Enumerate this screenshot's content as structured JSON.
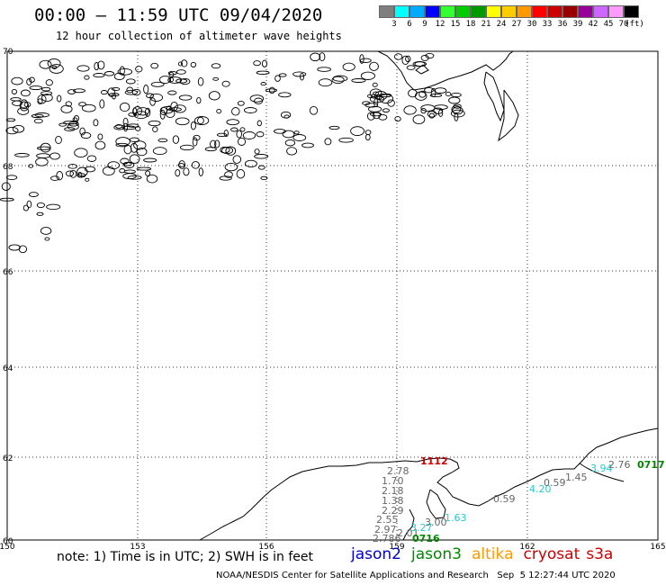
{
  "header": {
    "title": "00:00 – 11:59 UTC 09/04/2020",
    "subtitle": "12 hour collection of altimeter wave heights"
  },
  "color_scale": {
    "colors": [
      "#7f7f7f",
      "#00ffff",
      "#00aaff",
      "#0000ff",
      "#33ff33",
      "#00cc00",
      "#009900",
      "#ffff00",
      "#ffcc00",
      "#ff9900",
      "#ff0000",
      "#cc0000",
      "#990000",
      "#990099",
      "#cc66ff",
      "#ff99ff",
      "#000000"
    ],
    "labels": [
      "3",
      "6",
      "9",
      "12",
      "15",
      "18",
      "21",
      "24",
      "27",
      "30",
      "33",
      "36",
      "39",
      "42",
      "45",
      "70",
      "(ft)"
    ]
  },
  "map": {
    "lat_labels": [
      "70",
      "68",
      "66",
      "64",
      "62",
      "60"
    ],
    "lon_labels": [
      "150",
      "153",
      "156",
      "159",
      "162",
      "165"
    ]
  },
  "observations": [
    {
      "text": "1112",
      "color": "#cc0000"
    },
    {
      "text": "2.78",
      "color": "#666666"
    },
    {
      "text": "1.70",
      "color": "#666666"
    },
    {
      "text": "2.18",
      "color": "#666666"
    },
    {
      "text": "1.38",
      "color": "#666666"
    },
    {
      "text": "2.29",
      "color": "#666666"
    },
    {
      "text": "2.55",
      "color": "#666666"
    },
    {
      "text": "2.97",
      "color": "#666666"
    },
    {
      "text": "2.786",
      "color": "#666666"
    },
    {
      "text": "2.01",
      "color": "#666666"
    },
    {
      "text": "3.27",
      "color": "#22cccc"
    },
    {
      "text": "3.00",
      "color": "#666666"
    },
    {
      "text": "1.63",
      "color": "#22cccc"
    },
    {
      "text": "0716",
      "color": "#008800"
    },
    {
      "text": "0.59",
      "color": "#666666"
    },
    {
      "text": "4.20",
      "color": "#22cccc"
    },
    {
      "text": "0.59",
      "color": "#666666"
    },
    {
      "text": "1.45",
      "color": "#666666"
    },
    {
      "text": "3.94",
      "color": "#22cccc"
    },
    {
      "text": "2.76",
      "color": "#666666"
    },
    {
      "text": "0717",
      "color": "#008800"
    }
  ],
  "note": "note: 1) Time is in UTC; 2) SWH is in feet",
  "satellites": [
    {
      "name": "jason2",
      "color": "#0000cc"
    },
    {
      "name": "jason3",
      "color": "#008800"
    },
    {
      "name": "altika",
      "color": "#ff9900"
    },
    {
      "name": "cryosat",
      "color": "#cc0000"
    },
    {
      "name": "s3a",
      "color": "#cc0000"
    }
  ],
  "footer": "NOAA/NESDIS Center for Satellite Applications and Research   Sep  5 12:27:44 UTC 2020"
}
